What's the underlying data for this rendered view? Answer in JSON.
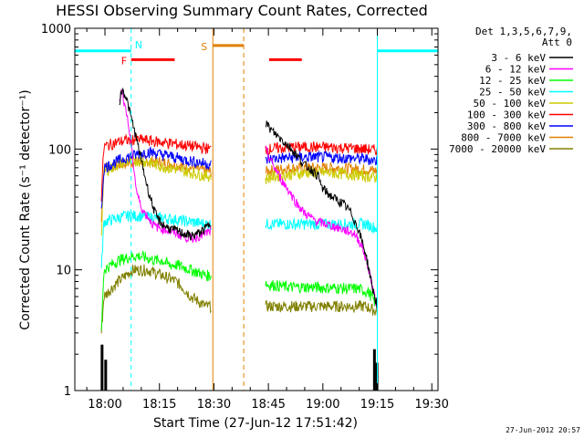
{
  "chart_data": {
    "type": "line",
    "title": "HESSI Observing Summary Count Rates, Corrected",
    "xlabel": "Start Time (27-Jun-12 17:51:42)",
    "ylabel": "Corrected Count Rate (s⁻¹ detector⁻¹)",
    "x_unit": "minutes after 17:51:42",
    "x_range": [
      0,
      100
    ],
    "y_scale": "log",
    "ylim": [
      1,
      1000
    ],
    "x_ticks": [
      {
        "value": 8.3,
        "label": "18:00"
      },
      {
        "value": 23.3,
        "label": "18:15"
      },
      {
        "value": 38.3,
        "label": "18:30"
      },
      {
        "value": 53.3,
        "label": "18:45"
      },
      {
        "value": 68.3,
        "label": "19:00"
      },
      {
        "value": 83.3,
        "label": "19:15"
      },
      {
        "value": 98.3,
        "label": "19:30"
      }
    ],
    "y_ticks": [
      {
        "value": 1,
        "label": "1"
      },
      {
        "value": 10,
        "label": "10"
      },
      {
        "value": 100,
        "label": "100"
      },
      {
        "value": 1000,
        "label": "1000"
      }
    ],
    "legend": {
      "header": [
        "Det 1,3,5,6,7,9,",
        "Att 0"
      ],
      "placement": "right"
    },
    "series": [
      {
        "name": "3 - 6 keV",
        "color": "#000000",
        "x": [
          12.3,
          13,
          14,
          15,
          16,
          17,
          18,
          19,
          20,
          21,
          22,
          23,
          24,
          25,
          26,
          28,
          30,
          32,
          34,
          36,
          37.5
        ],
        "y": [
          250,
          310,
          280,
          210,
          160,
          120,
          90,
          65,
          48,
          38,
          30,
          26,
          24,
          23,
          22,
          21,
          20,
          19,
          20,
          22,
          25
        ],
        "x2": [
          52.5,
          53.5,
          55,
          57,
          59,
          61,
          63,
          65,
          67,
          68,
          70,
          72,
          74,
          76,
          78,
          80,
          81,
          82,
          83.3
        ],
        "y2": [
          170,
          150,
          135,
          120,
          105,
          90,
          75,
          68,
          60,
          48,
          42,
          38,
          35,
          30,
          22,
          14,
          10,
          7,
          5
        ]
      },
      {
        "name": "6 - 12 keV",
        "color": "#ff00ff",
        "x": [
          12.3,
          13,
          14,
          15,
          16,
          17,
          18,
          19,
          20,
          21,
          22,
          24,
          26,
          28,
          30,
          32,
          34,
          36,
          37.5
        ],
        "y": [
          270,
          300,
          220,
          140,
          80,
          45,
          35,
          30,
          28,
          25,
          23,
          22,
          21,
          20,
          19,
          18,
          19,
          20,
          21
        ],
        "x2": [
          52.5,
          53.5,
          55,
          57,
          59,
          61,
          63,
          65,
          67,
          69,
          71,
          73,
          75,
          77,
          79,
          81,
          82.5,
          83.3
        ],
        "y2": [
          100,
          85,
          70,
          55,
          45,
          36,
          30,
          27,
          25,
          24,
          23,
          22,
          21,
          20,
          16,
          10,
          6,
          5
        ]
      },
      {
        "name": "12 - 25 keV",
        "color": "#00ff00",
        "x": [
          7.3,
          8,
          10,
          12,
          14,
          16,
          18,
          20,
          22,
          24,
          26,
          28,
          30,
          32,
          34,
          36,
          37.5
        ],
        "y": [
          3,
          10,
          11,
          12,
          12.5,
          13,
          13,
          12.5,
          12,
          12,
          11,
          11,
          10.5,
          10,
          9.5,
          9,
          9
        ],
        "x2": [
          52.5,
          53,
          55,
          57,
          60,
          63,
          66,
          69,
          72,
          75,
          78,
          81,
          83.3
        ],
        "y2": [
          8,
          7.5,
          7.5,
          7.3,
          7.2,
          7.2,
          7.2,
          7.1,
          7.1,
          7,
          7,
          6.5,
          5
        ]
      },
      {
        "name": "25 - 50 keV",
        "color": "#00ffff",
        "x": [
          7.3,
          8,
          10,
          12,
          14,
          16,
          18,
          20,
          22,
          24,
          26,
          28,
          30,
          32,
          34,
          36,
          37.5
        ],
        "y": [
          10,
          25,
          26,
          27,
          28,
          28,
          28,
          27.5,
          27,
          27,
          26.5,
          26,
          25.5,
          25,
          24.5,
          24,
          24
        ],
        "x2": [
          52.5,
          53,
          56,
          60,
          64,
          68,
          72,
          76,
          80,
          83.3
        ],
        "y2": [
          24,
          24,
          24,
          24,
          24,
          24,
          24,
          24,
          24,
          22
        ]
      },
      {
        "name": "50 - 100 keV",
        "color": "#cccc00",
        "x": [
          7.3,
          8,
          10,
          12,
          14,
          16,
          18,
          20,
          22,
          24,
          26,
          28,
          30,
          32,
          34,
          36,
          37.5
        ],
        "y": [
          20,
          65,
          70,
          75,
          78,
          80,
          80,
          78,
          75,
          72,
          70,
          68,
          66,
          64,
          62,
          60,
          60
        ],
        "x2": [
          52.5,
          53,
          56,
          60,
          64,
          68,
          72,
          76,
          80,
          83.3
        ],
        "y2": [
          55,
          58,
          60,
          62,
          64,
          64,
          63,
          62,
          60,
          58
        ]
      },
      {
        "name": "100 - 300 keV",
        "color": "#ff0000",
        "x": [
          7.3,
          8,
          10,
          12,
          14,
          16,
          18,
          20,
          22,
          24,
          26,
          28,
          30,
          32,
          34,
          36,
          37.5
        ],
        "y": [
          40,
          105,
          110,
          115,
          118,
          120,
          120,
          118,
          116,
          114,
          112,
          110,
          108,
          106,
          104,
          102,
          100
        ],
        "x2": [
          52.5,
          53,
          56,
          60,
          64,
          68,
          72,
          76,
          80,
          83.3
        ],
        "y2": [
          100,
          100,
          102,
          104,
          104,
          104,
          103,
          102,
          100,
          98
        ]
      },
      {
        "name": "300 - 800 keV",
        "color": "#0000ff",
        "x": [
          7.3,
          8,
          10,
          12,
          14,
          16,
          18,
          20,
          22,
          24,
          26,
          28,
          30,
          32,
          34,
          36,
          37.5
        ],
        "y": [
          30,
          70,
          75,
          80,
          85,
          88,
          92,
          95,
          93,
          90,
          88,
          85,
          82,
          80,
          78,
          76,
          75
        ],
        "x2": [
          52.5,
          53,
          56,
          60,
          64,
          68,
          72,
          76,
          80,
          83.3
        ],
        "y2": [
          80,
          82,
          84,
          85,
          86,
          86,
          85,
          84,
          83,
          80
        ]
      },
      {
        "name": "800 - 7000 keV",
        "color": "#e08000",
        "x": [
          7.3,
          8,
          10,
          12,
          14,
          16,
          18,
          20,
          22,
          24,
          26,
          28,
          30,
          32,
          34,
          36,
          37.5
        ],
        "y": [
          25,
          70,
          72,
          74,
          76,
          78,
          80,
          80,
          79,
          78,
          76,
          74,
          72,
          70,
          68,
          66,
          65
        ],
        "x2": [
          52.5,
          53,
          56,
          60,
          64,
          68,
          72,
          76,
          80,
          83.3
        ],
        "y2": [
          65,
          66,
          68,
          70,
          70,
          70,
          70,
          69,
          68,
          66
        ]
      },
      {
        "name": "7000 - 20000 keV",
        "color": "#808000",
        "x": [
          7.3,
          8,
          10,
          12,
          14,
          16,
          18,
          20,
          22,
          24,
          26,
          28,
          30,
          32,
          34,
          36,
          37.5
        ],
        "y": [
          3,
          6,
          7,
          8,
          9,
          10,
          10,
          10,
          9.5,
          9,
          8.5,
          8,
          7,
          6,
          5.5,
          5,
          5
        ],
        "x2": [
          52.5,
          53,
          56,
          60,
          64,
          68,
          72,
          76,
          80,
          83.3
        ],
        "y2": [
          5,
          5,
          5,
          5,
          5,
          5,
          5,
          5,
          5,
          4.5
        ]
      }
    ],
    "annotations": {
      "cyan_bars": [
        {
          "x1": 0,
          "x2": 15.5,
          "y": 650
        },
        {
          "x1": 83.3,
          "x2": 100,
          "y": 650
        }
      ],
      "flare_F": {
        "label": "F",
        "x1": 15.5,
        "x2": 27.5,
        "y": 550
      },
      "flare_N": {
        "label": "N"
      },
      "flare_red2": {
        "x1": 53.5,
        "x2": 62.5,
        "y": 550
      },
      "saa_S": {
        "label": "S",
        "x1": 38,
        "x2": 46.5,
        "y": 720
      },
      "vlines": [
        {
          "x": 0,
          "color": "#00ffff",
          "style": "solid"
        },
        {
          "x": 15.5,
          "color": "#00ffff",
          "style": "dashed"
        },
        {
          "x": 38,
          "color": "#e08000",
          "style": "solid"
        },
        {
          "x": 46.5,
          "color": "#e08000",
          "style": "dashed"
        },
        {
          "x": 83.3,
          "color": "#00ffff",
          "style": "solid"
        },
        {
          "x": 100,
          "color": "#00ffff",
          "style": "dashed"
        }
      ]
    },
    "footer_date": "27-Jun-2012 20:57"
  }
}
